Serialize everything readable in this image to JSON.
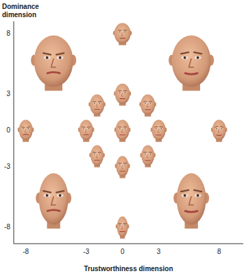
{
  "chart_data": {
    "type": "scatter",
    "x_label": "Trustworthiness dimension",
    "y_label": "Dominance dimension",
    "marker": "face",
    "grid": false,
    "x": [
      0,
      -2.1,
      0,
      2.1,
      -8,
      -3,
      0,
      3,
      8,
      -2.1,
      0,
      2.1,
      0,
      -5.7,
      5.7,
      -5.7,
      5.7
    ],
    "values": [
      8,
      2.1,
      3,
      2.1,
      0,
      0,
      0,
      0,
      0,
      -2.1,
      -3,
      -2.1,
      -8,
      5.7,
      5.7,
      -5.7,
      -5.7
    ],
    "xlim": [
      -9,
      10
    ],
    "ylim": [
      -9.4,
      9
    ],
    "xticks": [
      -8,
      -3,
      0,
      3,
      8
    ],
    "yticks": [
      8,
      3,
      0,
      -3,
      -8
    ]
  }
}
